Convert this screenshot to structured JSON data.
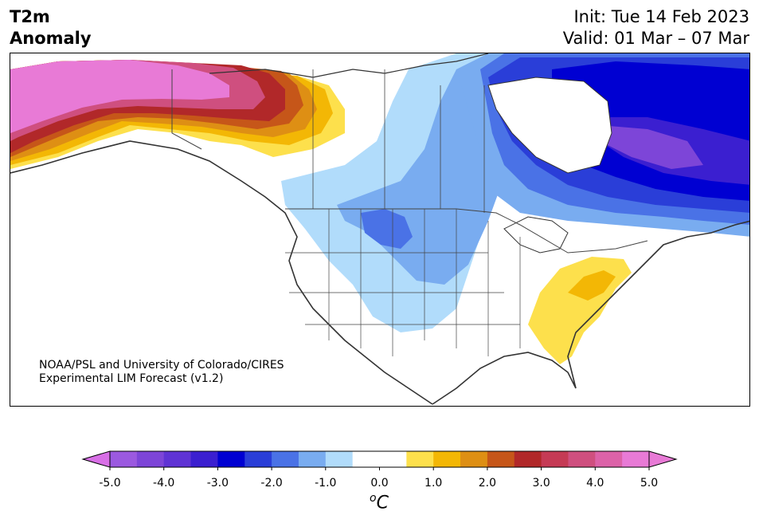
{
  "title": {
    "variable_line1": "T2m",
    "variable_line2": "Anomaly",
    "init": "Init: Tue 14 Feb 2023",
    "valid": "Valid: 01 Mar – 07 Mar"
  },
  "credit": {
    "line1": "NOAA/PSL and University of Colorado/CIRES",
    "line2": "Experimental LIM Forecast (v1.2)"
  },
  "colorbar": {
    "unit_base": "C",
    "unit_sup": "o",
    "tick_labels": [
      "-5.0",
      "-4.0",
      "-3.0",
      "-2.0",
      "-1.0",
      "0.0",
      "1.0",
      "2.0",
      "3.0",
      "4.0",
      "5.0"
    ],
    "bins": [
      {
        "range": [
          -5.0,
          -4.5
        ],
        "color": "#9b59e0"
      },
      {
        "range": [
          -4.5,
          -4.0
        ],
        "color": "#7d45d8"
      },
      {
        "range": [
          -4.0,
          -3.5
        ],
        "color": "#5f33d4"
      },
      {
        "range": [
          -3.5,
          -3.0
        ],
        "color": "#3b1fd0"
      },
      {
        "range": [
          -3.0,
          -2.5
        ],
        "color": "#0000d2"
      },
      {
        "range": [
          -2.5,
          -2.0
        ],
        "color": "#2a3ed8"
      },
      {
        "range": [
          -2.0,
          -1.5
        ],
        "color": "#4a72e6"
      },
      {
        "range": [
          -1.5,
          -1.0
        ],
        "color": "#79acf0"
      },
      {
        "range": [
          -1.0,
          -0.5
        ],
        "color": "#b1dcfb"
      },
      {
        "range": [
          -0.5,
          0.0
        ],
        "color": "#ffffff"
      },
      {
        "range": [
          0.0,
          0.5
        ],
        "color": "#ffffff"
      },
      {
        "range": [
          0.5,
          1.0
        ],
        "color": "#fde04c"
      },
      {
        "range": [
          1.0,
          1.5
        ],
        "color": "#f3b705"
      },
      {
        "range": [
          1.5,
          2.0
        ],
        "color": "#de8f14"
      },
      {
        "range": [
          2.0,
          2.5
        ],
        "color": "#c65619"
      },
      {
        "range": [
          2.5,
          3.0
        ],
        "color": "#b12829"
      },
      {
        "range": [
          3.0,
          3.5
        ],
        "color": "#c53a55"
      },
      {
        "range": [
          3.5,
          4.0
        ],
        "color": "#cf4f7f"
      },
      {
        "range": [
          4.0,
          4.5
        ],
        "color": "#dc62a8"
      },
      {
        "range": [
          4.5,
          5.0
        ],
        "color": "#e87ad6"
      }
    ],
    "under_color": "#d86fe6",
    "over_color": "#e87ad6"
  },
  "map": {
    "region": "North America",
    "colors": {
      "ocean": "#ffffff",
      "coast": "#333333",
      "border": "#444444"
    }
  }
}
